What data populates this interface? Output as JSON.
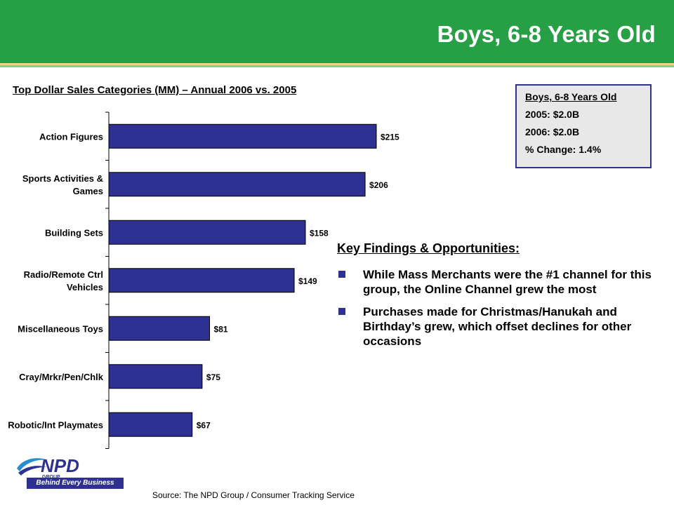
{
  "header": {
    "title": "Boys, 6-8 Years Old"
  },
  "chart_title": "Top Dollar Sales Categories (MM) – Annual 2006 vs. 2005",
  "stats_box": {
    "heading": "Boys, 6-8 Years Old",
    "line_2005": "2005: $2.0B",
    "line_2006": "2006: $2.0B",
    "line_change": "% Change: 1.4%"
  },
  "findings": {
    "title": "Key Findings & Opportunities:",
    "items": [
      "While Mass Merchants were the #1 channel for this group, the Online Channel grew the most",
      "Purchases made for Christmas/Hanukah and Birthday’s grew, which offset declines for other occasions"
    ]
  },
  "logo": {
    "wordmark": "NPD",
    "subtext": "GROUP",
    "tagline": "Behind Every Business Decision"
  },
  "source": "Source:  The NPD Group / Consumer Tracking Service",
  "colors": {
    "header_green": "#27a045",
    "bar_navy": "#2e3192",
    "box_border": "#2e3192"
  },
  "chart_data": {
    "type": "bar",
    "orientation": "horizontal",
    "categories": [
      "Action Figures",
      "Sports Activities & Games",
      "Building Sets",
      "Radio/Remote Ctrl Vehicles",
      "Miscellaneous Toys",
      "Cray/Mrkr/Pen/Chlk",
      "Robotic/Int Playmates"
    ],
    "category_lines": [
      [
        "Action Figures"
      ],
      [
        "Sports Activities &",
        "Games"
      ],
      [
        "Building Sets"
      ],
      [
        "Radio/Remote Ctrl",
        "Vehicles"
      ],
      [
        "Miscellaneous Toys"
      ],
      [
        "Cray/Mrkr/Pen/Chlk"
      ],
      [
        "Robotic/Int Playmates"
      ]
    ],
    "values": [
      215,
      206,
      158,
      149,
      81,
      75,
      67
    ],
    "data_labels": [
      "$215",
      "$206",
      "$158",
      "$149",
      "$81",
      "$75",
      "$67"
    ],
    "xlim": [
      0,
      225
    ],
    "grid": false,
    "legend": "none"
  }
}
